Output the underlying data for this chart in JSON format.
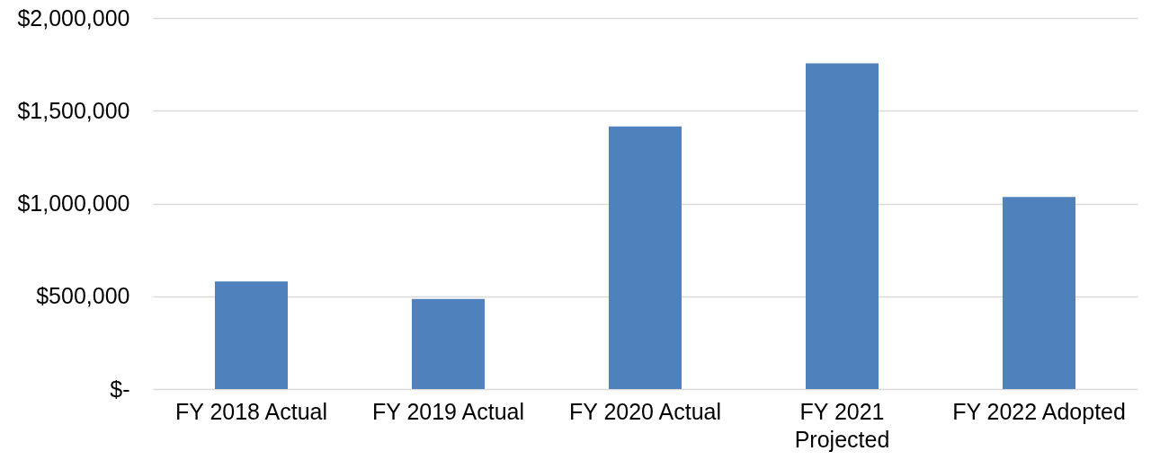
{
  "chart_data": {
    "type": "bar",
    "categories": [
      "FY 2018 Actual",
      "FY 2019 Actual",
      "FY 2020 Actual",
      "FY 2021 Projected",
      "FY 2022 Adopted"
    ],
    "values": [
      580000,
      485000,
      1415000,
      1755000,
      1035000
    ],
    "color": "#4f81bd",
    "ylim": [
      0,
      2000000
    ],
    "yticks": [
      {
        "value": 0,
        "label": "$-"
      },
      {
        "value": 500000,
        "label": "$500,000"
      },
      {
        "value": 1000000,
        "label": "$1,000,000"
      },
      {
        "value": 1500000,
        "label": "$1,500,000"
      },
      {
        "value": 2000000,
        "label": "$2,000,000"
      }
    ],
    "grid": "y"
  }
}
